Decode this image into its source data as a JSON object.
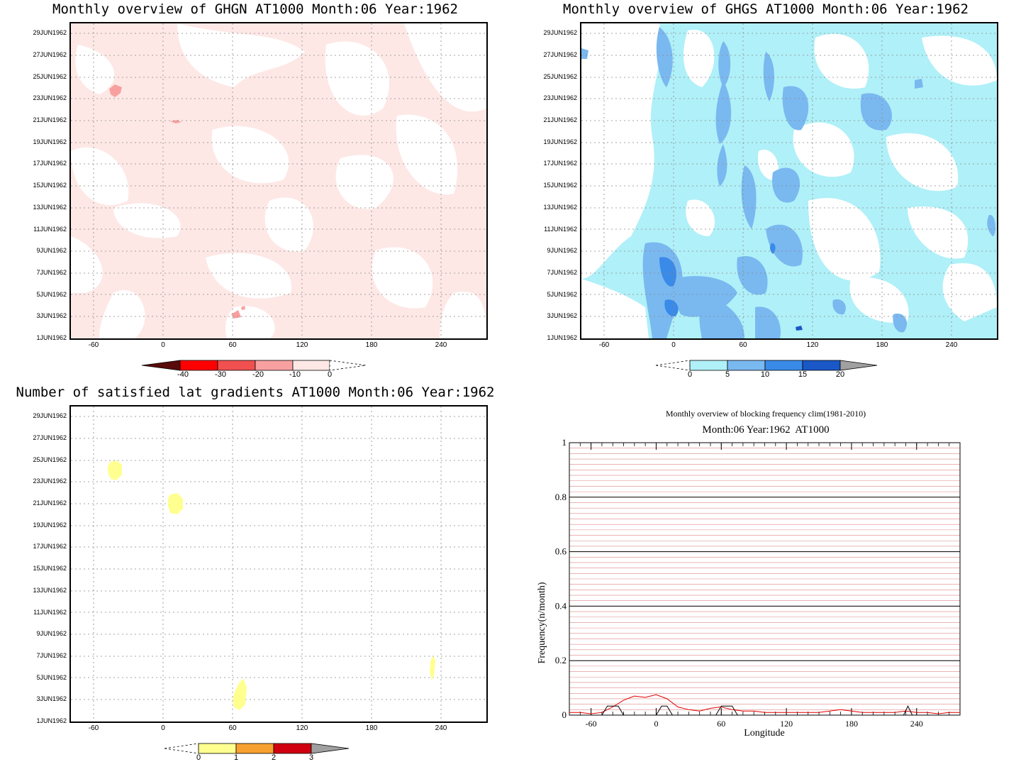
{
  "panels": {
    "ghgn": {
      "title": "Monthly overview of GHGN AT1000 Month:06 Year:1962",
      "colorbar": {
        "labels": [
          "-40",
          "-30",
          "-20",
          "-10",
          "0"
        ],
        "colors": [
          "#5a0a0a",
          "#ff0000",
          "#f05050",
          "#f8a0a0",
          "#fde8e6"
        ]
      }
    },
    "ghgs": {
      "title": "Monthly overview of GHGS AT1000 Month:06 Year:1962",
      "colorbar": {
        "labels": [
          "0",
          "5",
          "10",
          "15",
          "20"
        ],
        "colors": [
          "#b0f0f8",
          "#7ab8f0",
          "#3a8ae8",
          "#1a58c8",
          "#a0a0a0"
        ]
      }
    },
    "lat": {
      "title": "Number of satisfied lat gradients AT1000 Month:06 Year:1962",
      "colorbar": {
        "labels": [
          "0",
          "1",
          "2",
          "3"
        ],
        "colors": [
          "#ffff90",
          "#f7a030",
          "#d00010",
          "#a0a0a0"
        ]
      }
    },
    "block": {
      "title": "Monthly overview of blocking frequency clim(1981-2010)",
      "subtitle": "Month:06 Year:1962  AT1000",
      "ylabel": "Frequency(n/month)",
      "xlabel": "Longitude"
    }
  },
  "hovmoller_axes": {
    "yticks": [
      "1JUN1962",
      "3JUN1962",
      "5JUN1962",
      "7JUN1962",
      "9JUN1962",
      "11JUN1962",
      "13JUN1962",
      "15JUN1962",
      "17JUN1962",
      "19JUN1962",
      "21JUN1962",
      "23JUN1962",
      "25JUN1962",
      "27JUN1962",
      "29JUN1962"
    ],
    "xticks": [
      "-60",
      "0",
      "60",
      "120",
      "180",
      "240"
    ]
  },
  "chart_data": [
    {
      "type": "heatmap",
      "title": "Monthly overview of GHGN AT1000 Month:06 Year:1962",
      "xlim": [
        -80,
        280
      ],
      "ylim": [
        "1JUN1962",
        "30JUN1962"
      ],
      "colorbar_levels": [
        -40,
        -30,
        -20,
        -10,
        0
      ],
      "note_regions": [
        {
          "lon": -40,
          "day": 24,
          "level": "-20..-10"
        },
        {
          "lon": 10,
          "day": 21,
          "level": "-20..-10"
        },
        {
          "lon": 65,
          "day": 3,
          "level": "-20..-10"
        }
      ]
    },
    {
      "type": "heatmap",
      "title": "Monthly overview of GHGS AT1000 Month:06 Year:1962",
      "xlim": [
        -80,
        280
      ],
      "ylim": [
        "1JUN1962",
        "30JUN1962"
      ],
      "colorbar_levels": [
        0,
        5,
        10,
        15,
        20
      ]
    },
    {
      "type": "heatmap",
      "title": "Number of satisfied lat gradients AT1000 Month:06 Year:1962",
      "xlim": [
        -80,
        280
      ],
      "ylim": [
        "1JUN1962",
        "30JUN1962"
      ],
      "colorbar_levels": [
        0,
        1,
        2,
        3
      ],
      "events": [
        {
          "lon": -40,
          "day": 24,
          "value": 1
        },
        {
          "lon": 12,
          "day": 21,
          "value": 1
        },
        {
          "lon": 65,
          "day": 3.5,
          "value": 1
        },
        {
          "lon": 235,
          "day": 6,
          "value": 1
        }
      ]
    },
    {
      "type": "line",
      "title": "Monthly overview of blocking frequency clim(1981-2010)",
      "subtitle": "Month:06 Year:1962  AT1000",
      "xlabel": "Longitude",
      "ylabel": "Frequency(n/month)",
      "xlim": [
        -80,
        280
      ],
      "ylim": [
        0,
        1
      ],
      "xticks": [
        -60,
        0,
        60,
        120,
        180,
        240
      ],
      "yticks": [
        0,
        0.2,
        0.4,
        0.6,
        0.8,
        1
      ],
      "grid": true,
      "series": [
        {
          "color": "#e00000",
          "x": [
            -80,
            -70,
            -60,
            -50,
            -40,
            -30,
            -20,
            -10,
            0,
            10,
            20,
            30,
            40,
            50,
            60,
            70,
            80,
            90,
            100,
            110,
            120,
            130,
            140,
            150,
            160,
            170,
            180,
            190,
            200,
            210,
            220,
            230,
            240,
            250,
            260,
            270,
            280
          ],
          "values": [
            0.01,
            0.01,
            0.005,
            0.01,
            0.03,
            0.055,
            0.07,
            0.065,
            0.075,
            0.06,
            0.03,
            0.02,
            0.015,
            0.025,
            0.03,
            0.02,
            0.015,
            0.015,
            0.01,
            0.01,
            0.01,
            0.01,
            0.01,
            0.01,
            0.015,
            0.02,
            0.015,
            0.01,
            0.01,
            0.01,
            0.01,
            0.015,
            0.01,
            0.01,
            0.005,
            0.01,
            0.01
          ]
        },
        {
          "color": "#000000",
          "x": [
            -80,
            -70,
            -60,
            -50,
            -45,
            -40,
            -35,
            -30,
            -20,
            -10,
            0,
            5,
            10,
            15,
            20,
            40,
            55,
            60,
            65,
            70,
            75,
            100,
            200,
            228,
            232,
            236,
            260,
            280
          ],
          "values": [
            0,
            0,
            0,
            0,
            0.033,
            0.033,
            0.033,
            0,
            0,
            0,
            0,
            0.033,
            0.033,
            0,
            0,
            0,
            0,
            0.033,
            0.033,
            0.033,
            0,
            0,
            0,
            0,
            0.033,
            0,
            0,
            0
          ]
        }
      ]
    }
  ]
}
